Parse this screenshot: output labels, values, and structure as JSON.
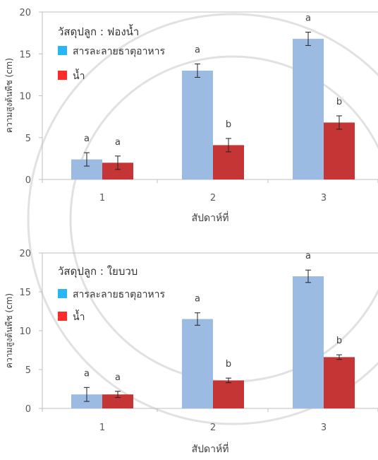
{
  "chart_data": [
    {
      "type": "bar",
      "legend_title": "วัสดุปลูก : ฟองน้ำ",
      "xlabel": "สัปดาห์ที่",
      "ylabel": "ความสูงต้นพืช (cm)",
      "ylim": [
        0,
        20
      ],
      "yticks": [
        0,
        5,
        10,
        15,
        20
      ],
      "categories": [
        "1",
        "2",
        "3"
      ],
      "legend_position": "top-left",
      "series": [
        {
          "name": "สารละลายธาตุอาหาร",
          "color": "#5b9bd5",
          "values": [
            2.4,
            13.0,
            16.8
          ],
          "errors": [
            0.8,
            0.8,
            0.8
          ],
          "sig": [
            "a",
            "a",
            "a"
          ]
        },
        {
          "name": "น้ำ",
          "color": "#c0392b",
          "values": [
            2.0,
            4.1,
            6.8
          ],
          "errors": [
            0.8,
            0.8,
            0.8
          ],
          "sig": [
            "a",
            "b",
            "b"
          ]
        }
      ]
    },
    {
      "type": "bar",
      "legend_title": "วัสดุปลูก : ใยบวบ",
      "xlabel": "สัปดาห์ที่",
      "ylabel": "ความสูงต้นพืช (cm)",
      "ylim": [
        0,
        20
      ],
      "yticks": [
        0,
        5,
        10,
        15,
        20
      ],
      "categories": [
        "1",
        "2",
        "3"
      ],
      "legend_position": "top-left",
      "series": [
        {
          "name": "สารละลายธาตุอาหาร",
          "color": "#5b9bd5",
          "values": [
            1.8,
            11.5,
            17.0
          ],
          "errors": [
            0.9,
            0.8,
            0.8
          ],
          "sig": [
            "a",
            "a",
            "a"
          ]
        },
        {
          "name": "น้ำ",
          "color": "#c0392b",
          "values": [
            1.8,
            3.6,
            6.6
          ],
          "errors": [
            0.4,
            0.3,
            0.3
          ],
          "sig": [
            "a",
            "b",
            "b"
          ]
        }
      ]
    }
  ],
  "legend_swatch_colors": [
    "#29b6f6",
    "#ff2a2a"
  ]
}
